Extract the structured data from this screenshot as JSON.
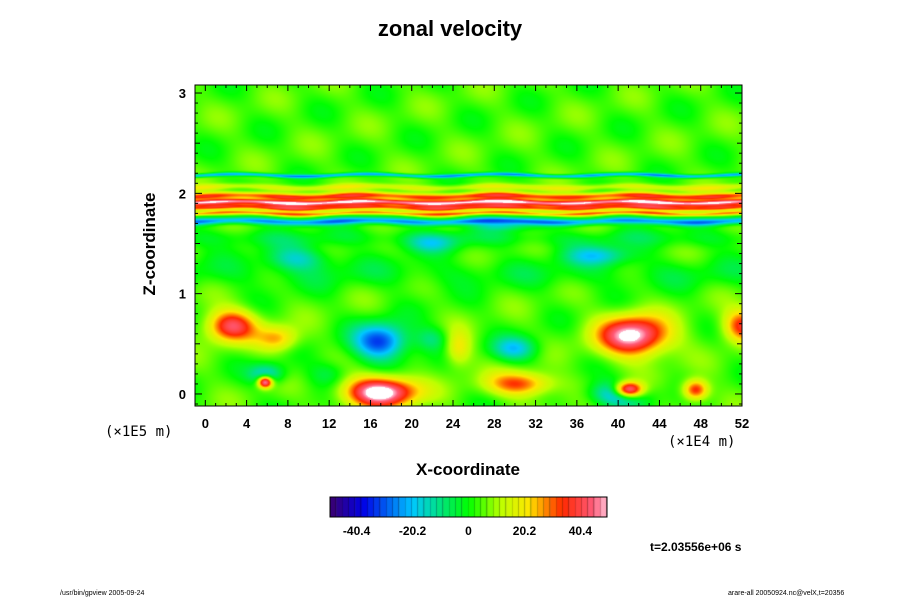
{
  "chart_data": {
    "type": "heatmap",
    "title": "zonal velocity",
    "xlabel": "X-coordinate",
    "ylabel": "Z-coordinate",
    "x_scale_note": "(×1E4 m)",
    "y_scale_note": "(×1E5 m)",
    "xlim": [
      -1,
      52
    ],
    "ylim": [
      -0.12,
      3.08
    ],
    "x_ticks": [
      "0",
      "4",
      "8",
      "12",
      "16",
      "20",
      "24",
      "28",
      "32",
      "36",
      "40",
      "44",
      "48",
      "52"
    ],
    "y_ticks": [
      "0",
      "1",
      "2",
      "3"
    ],
    "colorbar": {
      "range": [
        -50,
        50
      ],
      "tick_labels": [
        "-40.4",
        "-20.2",
        "0",
        "20.2",
        "40.4"
      ],
      "tick_values": [
        -40.4,
        -20.2,
        0,
        20.2,
        40.4
      ]
    },
    "field": {
      "background": 4,
      "bands": [
        {
          "z": 2.18,
          "width": 0.018,
          "amp": -26
        },
        {
          "z": 2.06,
          "width": 0.03,
          "amp": 12
        },
        {
          "z": 1.97,
          "width": 0.035,
          "amp": 30
        },
        {
          "z": 1.91,
          "width": 0.025,
          "amp": 44
        },
        {
          "z": 1.86,
          "width": 0.03,
          "amp": 32
        },
        {
          "z": 1.8,
          "width": 0.02,
          "amp": 24
        },
        {
          "z": 1.72,
          "width": 0.035,
          "amp": -28
        },
        {
          "z": 1.55,
          "width": 0.09,
          "amp": -6
        },
        {
          "z": 1.2,
          "width": 0.15,
          "amp": -5
        }
      ],
      "blobs": [
        {
          "x": 2.5,
          "z": 0.68,
          "rx": 2.4,
          "rz": 0.16,
          "amp": 38
        },
        {
          "x": 52,
          "z": 0.68,
          "rx": 1.8,
          "rz": 0.16,
          "amp": 32
        },
        {
          "x": 7,
          "z": 0.55,
          "rx": 2.0,
          "rz": 0.13,
          "amp": 22
        },
        {
          "x": 6,
          "z": 0.2,
          "rx": 1.7,
          "rz": 0.1,
          "amp": -22
        },
        {
          "x": 5.8,
          "z": 0.12,
          "rx": 0.7,
          "rz": 0.06,
          "amp": 52
        },
        {
          "x": 17,
          "z": 0.52,
          "rx": 2.6,
          "rz": 0.18,
          "amp": -38
        },
        {
          "x": 22,
          "z": 0.55,
          "rx": 1.6,
          "rz": 0.12,
          "amp": -12
        },
        {
          "x": 24.5,
          "z": 0.45,
          "rx": 1.3,
          "rz": 0.18,
          "amp": 18
        },
        {
          "x": 30,
          "z": 0.45,
          "rx": 2.2,
          "rz": 0.12,
          "amp": -22
        },
        {
          "x": 17,
          "z": 0.02,
          "rx": 3.4,
          "rz": 0.15,
          "amp": 54
        },
        {
          "x": 30.5,
          "z": 0.1,
          "rx": 3.2,
          "rz": 0.12,
          "amp": 30
        },
        {
          "x": 41.5,
          "z": 0.58,
          "rx": 3.4,
          "rz": 0.2,
          "amp": 50
        },
        {
          "x": 40,
          "z": 0.0,
          "rx": 2.6,
          "rz": 0.12,
          "amp": -30
        },
        {
          "x": 41,
          "z": 0.04,
          "rx": 1.4,
          "rz": 0.08,
          "amp": 60
        },
        {
          "x": 47.5,
          "z": 0.04,
          "rx": 1.2,
          "rz": 0.1,
          "amp": 35
        },
        {
          "x": 12,
          "z": 0.2,
          "rx": 2.0,
          "rz": 0.13,
          "amp": -10
        },
        {
          "x": 9,
          "z": 1.35,
          "rx": 3.0,
          "rz": 0.12,
          "amp": -18
        },
        {
          "x": 22,
          "z": 1.5,
          "rx": 2.5,
          "rz": 0.1,
          "amp": -14
        },
        {
          "x": 38,
          "z": 1.38,
          "rx": 3.2,
          "rz": 0.1,
          "amp": -20
        },
        {
          "x": 29,
          "z": 1.68,
          "rx": 3.0,
          "rz": 0.05,
          "amp": -14
        }
      ]
    }
  },
  "labels": {
    "time": "t=2.03556e+06 s",
    "footer_left": "/usr/bin/gpview 2005-09-24",
    "footer_right": "arare-all 20050924.nc@velX,t=20356"
  }
}
